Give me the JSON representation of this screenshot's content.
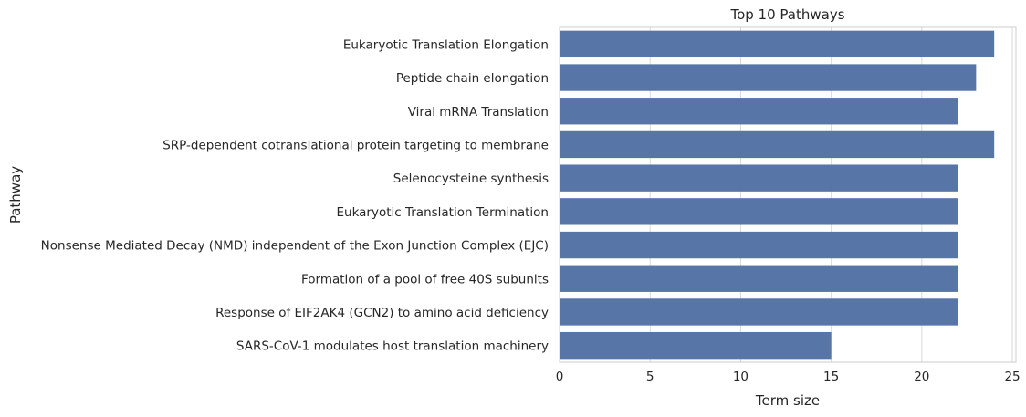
{
  "chart_data": {
    "type": "bar",
    "orientation": "horizontal",
    "title": "Top 10 Pathways",
    "xlabel": "Term size",
    "ylabel": "Pathway",
    "categories": [
      "Eukaryotic Translation Elongation",
      "Peptide chain elongation",
      "Viral mRNA Translation",
      "SRP-dependent cotranslational protein targeting to membrane",
      "Selenocysteine synthesis",
      "Eukaryotic Translation Termination",
      "Nonsense Mediated Decay (NMD) independent of the Exon Junction Complex (EJC)",
      "Formation of a pool of free 40S subunits",
      "Response of EIF2AK4 (GCN2) to amino acid deficiency",
      "SARS-CoV-1 modulates host translation machinery"
    ],
    "values": [
      24,
      23,
      22,
      24,
      22,
      22,
      22,
      22,
      22,
      15
    ],
    "xlim": [
      0,
      25.2
    ],
    "xticks": [
      0,
      5,
      10,
      15,
      20,
      25
    ],
    "grid": true,
    "bar_color": "#5875a8"
  }
}
